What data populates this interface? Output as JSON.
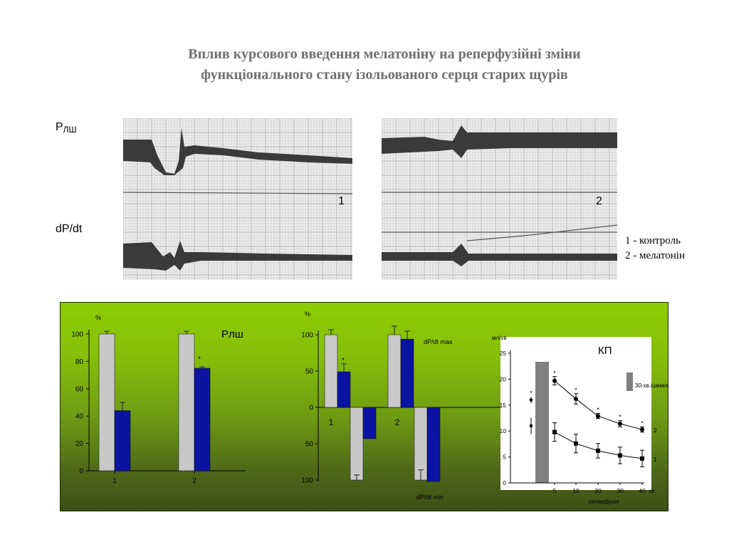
{
  "slide": {
    "title_line1": "Вплив курсового введення  мелатоніну на реперфузійні зміни",
    "title_line2": "функціонального стану ізольованого серця старих щурів",
    "label_p_main": "Р",
    "label_p_sub": "ЛШ",
    "label_dpdt": "dP/dt",
    "trace1_number": "1",
    "trace2_number": "2",
    "legend_1": "1 - контроль",
    "legend_2": "2 - мелатонін"
  },
  "colors": {
    "control_bar": "#c8c8c8",
    "melatonin_bar": "#0a14a0",
    "ischemia_bar": "#808080",
    "panel_green": "#86c009"
  },
  "chart_data": [
    {
      "type": "bar",
      "title": "Рлш",
      "ylabel": "%",
      "ylim": [
        0,
        100
      ],
      "yticks": [
        "0",
        "20",
        "40",
        "60",
        "80",
        "100"
      ],
      "categories": [
        "1",
        "2"
      ],
      "series": [
        {
          "values": [
            100,
            100
          ],
          "errors": [
            2,
            2
          ]
        },
        {
          "values": [
            44,
            75
          ],
          "errors": [
            6,
            1
          ]
        }
      ],
      "annotations": [
        {
          "category": "2",
          "text": "*"
        }
      ]
    },
    {
      "type": "bar",
      "ylabel": "%",
      "ylim": [
        -100,
        100
      ],
      "yticks": [
        "100",
        "50",
        "0",
        "50",
        "100"
      ],
      "categories": [
        "1",
        "2"
      ],
      "labels": {
        "max": "dP/dt max",
        "min": "dP/dt min"
      },
      "series": [
        {
          "max_values": [
            100,
            100
          ],
          "max_errors": [
            7,
            12
          ],
          "min_values": [
            -100,
            -100
          ],
          "min_errors": [
            7,
            14
          ]
        },
        {
          "max_values": [
            49,
            94
          ],
          "max_errors": [
            11,
            11
          ],
          "min_values": [
            -43,
            -102
          ],
          "min_errors": [
            0,
            0
          ]
        }
      ],
      "annotations": [
        {
          "category": "1",
          "text": "*"
        }
      ]
    },
    {
      "type": "line",
      "title": "КП",
      "ylabel": "мл/хв",
      "xlabel": "реперфузія",
      "x_unit": "хв",
      "ylim": [
        0,
        25
      ],
      "yticks": [
        "0",
        "5",
        "10",
        "15",
        "20",
        "25"
      ],
      "xticks": [
        "5",
        "10",
        "20",
        "30",
        "40"
      ],
      "ischemia_label": "30-хв.ішемія",
      "series": [
        {
          "name": "2",
          "baseline": 16,
          "baseline_error": 0.6,
          "x": [
            5,
            10,
            20,
            30,
            40
          ],
          "values": [
            19.7,
            16.2,
            12.9,
            11.4,
            10.3
          ],
          "errors": [
            0.8,
            1.0,
            0.5,
            0.6,
            0.5
          ]
        },
        {
          "name": "1",
          "baseline": 11,
          "baseline_error": 1.6,
          "x": [
            5,
            10,
            20,
            30,
            40
          ],
          "values": [
            9.8,
            7.6,
            6.2,
            5.3,
            4.7
          ],
          "errors": [
            1.8,
            1.8,
            1.4,
            1.6,
            1.6
          ]
        }
      ],
      "annotations": [
        {
          "series": "2",
          "point": "baseline",
          "text": "*"
        },
        {
          "series": "2",
          "x": 5,
          "text": "*"
        },
        {
          "series": "2",
          "x": 10,
          "text": "*"
        },
        {
          "series": "2",
          "x": 20,
          "text": "*"
        },
        {
          "series": "2",
          "x": 30,
          "text": "*"
        },
        {
          "series": "2",
          "x": 40,
          "text": "*"
        }
      ]
    }
  ]
}
